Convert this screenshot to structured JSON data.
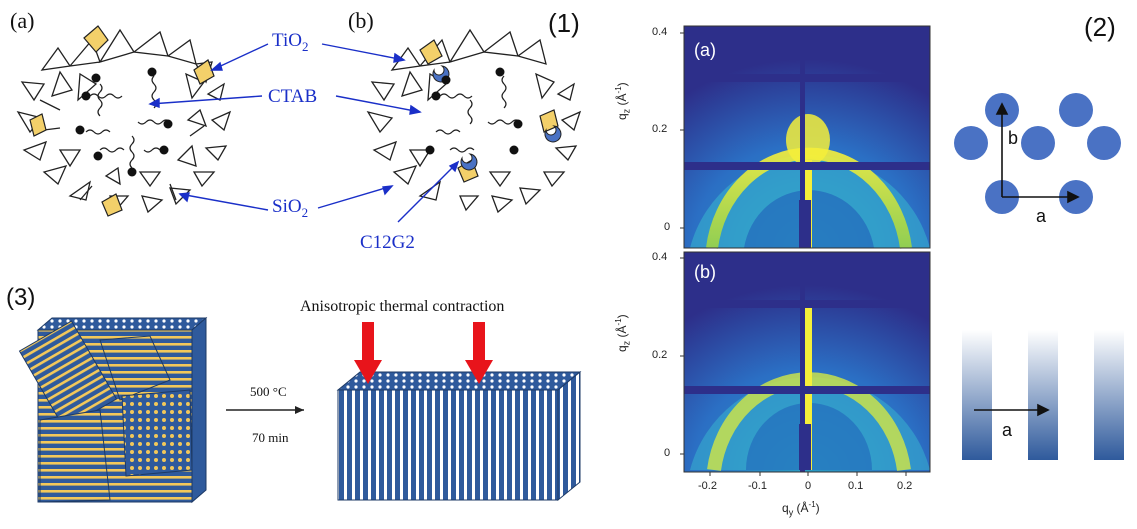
{
  "figure": {
    "panel_1": {
      "number_label": "(1)",
      "sub_a": "(a)",
      "sub_b": "(b)",
      "labels": {
        "tio2": "TiO",
        "tio2_sub": "2",
        "ctab": "CTAB",
        "sio2": "SiO",
        "sio2_sub": "2",
        "c12g2": "C12G2"
      }
    },
    "panel_2": {
      "number_label": "(2)",
      "lattice_top": {
        "axis_b": "b",
        "axis_a": "a"
      },
      "lattice_bottom": {
        "axis_a": "a"
      },
      "saxs": {
        "top_tag": "(a)",
        "bottom_tag": "(b)",
        "y_ticks_top": [
          "0.4",
          "0.2",
          "0"
        ],
        "y_ticks_bottom": [
          "0.4",
          "0.2",
          "0"
        ],
        "x_ticks": [
          "-0.2",
          "-0.1",
          "0",
          "0.1",
          "0.2"
        ],
        "y_label": "q",
        "y_label_sub": "z",
        "y_label_unit": "(Å",
        "y_label_exp": "-1",
        "y_label_close": ")",
        "x_label": "q",
        "x_label_sub": "y",
        "x_label_unit": "(Å",
        "x_label_exp": "-1",
        "x_label_close": ")"
      }
    },
    "panel_3": {
      "number_label": "(3)",
      "title": "Anisotropic thermal contraction",
      "temperature": "500 °C",
      "time": "70 min"
    },
    "colors": {
      "blue_label": "#1a2fc8",
      "yellow_tile": "#f3d06a",
      "lattice_blue": "#4a72c4",
      "structure_blue": "#2f5a9c",
      "structure_yellow": "#f3c85a",
      "arrow_red": "#e8141b"
    }
  }
}
